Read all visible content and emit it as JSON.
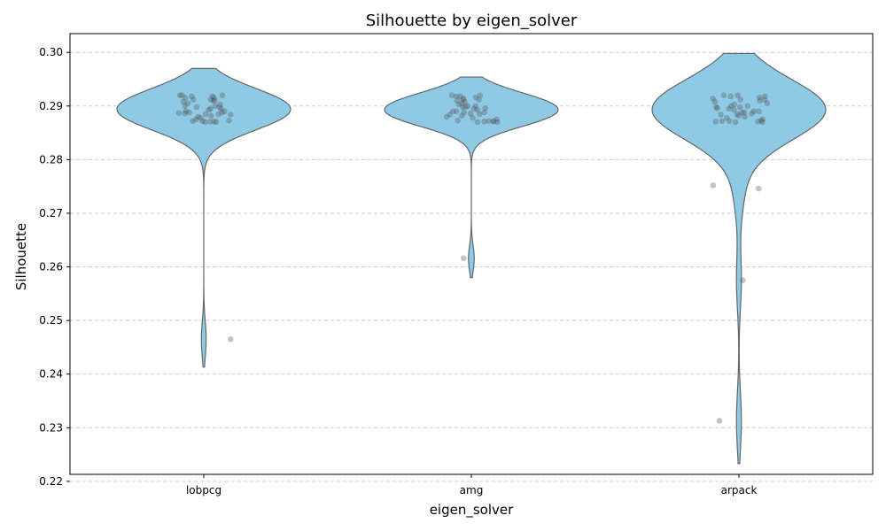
{
  "colors": {
    "violin_fill": "#8ecae6",
    "violin_stroke": "#666666",
    "point": "#555555",
    "grid": "#cccccc"
  },
  "chart_data": {
    "type": "violin",
    "title": "Silhouette by eigen_solver",
    "xlabel": "eigen_solver",
    "ylabel": "Silhouette",
    "ylim": [
      0.2213,
      0.3035
    ],
    "yticks": [
      0.22,
      0.23,
      0.24,
      0.25,
      0.26,
      0.27,
      0.28,
      0.29,
      0.3
    ],
    "ytick_labels": [
      "0.22",
      "0.23",
      "0.24",
      "0.25",
      "0.26",
      "0.27",
      "0.28",
      "0.29",
      "0.30"
    ],
    "grid": "y-dashed",
    "categories": [
      "lobpcg",
      "amg",
      "arpack"
    ],
    "series": [
      {
        "category": "lobpcg",
        "violin_range": [
          0.2413,
          0.297
        ],
        "points": [
          0.292,
          0.292,
          0.2918,
          0.292,
          0.2918,
          0.2915,
          0.2915,
          0.2912,
          0.2912,
          0.291,
          0.291,
          0.2908,
          0.2905,
          0.2903,
          0.29,
          0.29,
          0.2898,
          0.2898,
          0.2895,
          0.2895,
          0.2893,
          0.289,
          0.289,
          0.2888,
          0.2888,
          0.2887,
          0.2886,
          0.2885,
          0.2885,
          0.2884,
          0.2882,
          0.288,
          0.2878,
          0.2875,
          0.2873,
          0.2872,
          0.2872,
          0.2871,
          0.2871,
          0.287,
          0.287,
          0.2465
        ]
      },
      {
        "category": "amg",
        "violin_range": [
          0.258,
          0.2954
        ],
        "points": [
          0.292,
          0.292,
          0.2918,
          0.2918,
          0.2916,
          0.2914,
          0.2912,
          0.2912,
          0.291,
          0.2908,
          0.2905,
          0.2903,
          0.29,
          0.29,
          0.2898,
          0.2898,
          0.2896,
          0.2895,
          0.2893,
          0.289,
          0.289,
          0.2888,
          0.2888,
          0.2886,
          0.2885,
          0.2884,
          0.2882,
          0.288,
          0.2878,
          0.2875,
          0.2873,
          0.2872,
          0.2872,
          0.2871,
          0.2871,
          0.287,
          0.287,
          0.2616
        ]
      },
      {
        "category": "arpack",
        "violin_range": [
          0.2233,
          0.2998
        ],
        "points": [
          0.292,
          0.292,
          0.2918,
          0.2918,
          0.2916,
          0.2914,
          0.2912,
          0.2912,
          0.291,
          0.2908,
          0.2905,
          0.2903,
          0.29,
          0.29,
          0.2898,
          0.2898,
          0.2896,
          0.2895,
          0.2893,
          0.289,
          0.289,
          0.2888,
          0.2888,
          0.2886,
          0.2885,
          0.2884,
          0.2882,
          0.288,
          0.2878,
          0.2875,
          0.2873,
          0.2872,
          0.2872,
          0.2871,
          0.2871,
          0.287,
          0.287,
          0.2752,
          0.2746,
          0.2575,
          0.2313
        ]
      }
    ]
  }
}
